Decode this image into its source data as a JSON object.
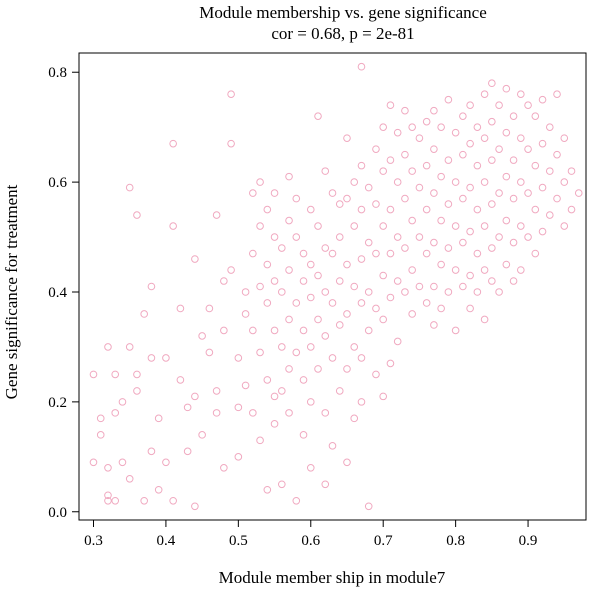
{
  "chart_data": {
    "type": "scatter",
    "title": "Module membership vs. gene significance",
    "subtitle": "cor = 0.68, p = 2e-81",
    "xlabel": "Module member ship in module7",
    "ylabel": "Gene significance for treatment",
    "xlim": [
      0.28,
      0.98
    ],
    "ylim": [
      -0.015,
      0.835
    ],
    "xticks": [
      0.3,
      0.4,
      0.5,
      0.6,
      0.7,
      0.8,
      0.9
    ],
    "xtick_labels": [
      "0.3",
      "0.4",
      "0.5",
      "0.6",
      "0.7",
      "0.8",
      "0.9"
    ],
    "yticks": [
      0.0,
      0.2,
      0.4,
      0.6,
      0.8
    ],
    "ytick_labels": [
      "0.0",
      "0.2",
      "0.4",
      "0.6",
      "0.8"
    ],
    "grid": false,
    "legend": "none",
    "marker": "open-circle",
    "point_color": "#f0a9c0",
    "series": [
      {
        "points": [
          [
            0.3,
            0.09
          ],
          [
            0.3,
            0.25
          ],
          [
            0.31,
            0.17
          ],
          [
            0.31,
            0.14
          ],
          [
            0.32,
            0.08
          ],
          [
            0.32,
            0.03
          ],
          [
            0.32,
            0.02
          ],
          [
            0.32,
            0.3
          ],
          [
            0.33,
            0.18
          ],
          [
            0.33,
            0.25
          ],
          [
            0.33,
            0.02
          ],
          [
            0.34,
            0.09
          ],
          [
            0.34,
            0.2
          ],
          [
            0.35,
            0.3
          ],
          [
            0.35,
            0.59
          ],
          [
            0.35,
            0.06
          ],
          [
            0.36,
            0.54
          ],
          [
            0.36,
            0.25
          ],
          [
            0.36,
            0.22
          ],
          [
            0.37,
            0.36
          ],
          [
            0.37,
            0.02
          ],
          [
            0.38,
            0.41
          ],
          [
            0.38,
            0.11
          ],
          [
            0.38,
            0.28
          ],
          [
            0.39,
            0.17
          ],
          [
            0.39,
            0.04
          ],
          [
            0.4,
            0.09
          ],
          [
            0.4,
            0.28
          ],
          [
            0.41,
            0.67
          ],
          [
            0.41,
            0.52
          ],
          [
            0.41,
            0.02
          ],
          [
            0.42,
            0.37
          ],
          [
            0.42,
            0.24
          ],
          [
            0.43,
            0.19
          ],
          [
            0.43,
            0.11
          ],
          [
            0.44,
            0.46
          ],
          [
            0.44,
            0.21
          ],
          [
            0.44,
            0.01
          ],
          [
            0.45,
            0.32
          ],
          [
            0.45,
            0.14
          ],
          [
            0.46,
            0.37
          ],
          [
            0.46,
            0.29
          ],
          [
            0.47,
            0.54
          ],
          [
            0.47,
            0.22
          ],
          [
            0.47,
            0.18
          ],
          [
            0.48,
            0.42
          ],
          [
            0.48,
            0.33
          ],
          [
            0.48,
            0.08
          ],
          [
            0.49,
            0.76
          ],
          [
            0.49,
            0.67
          ],
          [
            0.49,
            0.44
          ],
          [
            0.5,
            0.28
          ],
          [
            0.5,
            0.19
          ],
          [
            0.5,
            0.1
          ],
          [
            0.51,
            0.4
          ],
          [
            0.51,
            0.36
          ],
          [
            0.51,
            0.23
          ],
          [
            0.52,
            0.58
          ],
          [
            0.52,
            0.47
          ],
          [
            0.52,
            0.33
          ],
          [
            0.52,
            0.18
          ],
          [
            0.53,
            0.6
          ],
          [
            0.53,
            0.52
          ],
          [
            0.53,
            0.41
          ],
          [
            0.53,
            0.29
          ],
          [
            0.53,
            0.13
          ],
          [
            0.54,
            0.55
          ],
          [
            0.54,
            0.45
          ],
          [
            0.54,
            0.38
          ],
          [
            0.54,
            0.24
          ],
          [
            0.54,
            0.04
          ],
          [
            0.55,
            0.58
          ],
          [
            0.55,
            0.5
          ],
          [
            0.55,
            0.42
          ],
          [
            0.55,
            0.33
          ],
          [
            0.55,
            0.21
          ],
          [
            0.55,
            0.16
          ],
          [
            0.56,
            0.48
          ],
          [
            0.56,
            0.4
          ],
          [
            0.56,
            0.3
          ],
          [
            0.56,
            0.22
          ],
          [
            0.56,
            0.05
          ],
          [
            0.57,
            0.61
          ],
          [
            0.57,
            0.53
          ],
          [
            0.57,
            0.44
          ],
          [
            0.57,
            0.35
          ],
          [
            0.57,
            0.26
          ],
          [
            0.57,
            0.18
          ],
          [
            0.58,
            0.57
          ],
          [
            0.58,
            0.5
          ],
          [
            0.58,
            0.38
          ],
          [
            0.58,
            0.29
          ],
          [
            0.58,
            0.02
          ],
          [
            0.59,
            0.47
          ],
          [
            0.59,
            0.42
          ],
          [
            0.59,
            0.33
          ],
          [
            0.59,
            0.24
          ],
          [
            0.59,
            0.14
          ],
          [
            0.6,
            0.55
          ],
          [
            0.6,
            0.45
          ],
          [
            0.6,
            0.39
          ],
          [
            0.6,
            0.3
          ],
          [
            0.6,
            0.2
          ],
          [
            0.6,
            0.08
          ],
          [
            0.61,
            0.72
          ],
          [
            0.61,
            0.52
          ],
          [
            0.61,
            0.43
          ],
          [
            0.61,
            0.35
          ],
          [
            0.61,
            0.26
          ],
          [
            0.62,
            0.62
          ],
          [
            0.62,
            0.48
          ],
          [
            0.62,
            0.4
          ],
          [
            0.62,
            0.32
          ],
          [
            0.62,
            0.18
          ],
          [
            0.62,
            0.05
          ],
          [
            0.63,
            0.58
          ],
          [
            0.63,
            0.47
          ],
          [
            0.63,
            0.38
          ],
          [
            0.63,
            0.28
          ],
          [
            0.63,
            0.12
          ],
          [
            0.64,
            0.56
          ],
          [
            0.64,
            0.5
          ],
          [
            0.64,
            0.42
          ],
          [
            0.64,
            0.34
          ],
          [
            0.64,
            0.22
          ],
          [
            0.65,
            0.68
          ],
          [
            0.65,
            0.57
          ],
          [
            0.65,
            0.45
          ],
          [
            0.65,
            0.36
          ],
          [
            0.65,
            0.26
          ],
          [
            0.65,
            0.09
          ],
          [
            0.66,
            0.6
          ],
          [
            0.66,
            0.52
          ],
          [
            0.66,
            0.41
          ],
          [
            0.66,
            0.3
          ],
          [
            0.66,
            0.17
          ],
          [
            0.67,
            0.81
          ],
          [
            0.67,
            0.63
          ],
          [
            0.67,
            0.55
          ],
          [
            0.67,
            0.46
          ],
          [
            0.67,
            0.38
          ],
          [
            0.67,
            0.28
          ],
          [
            0.67,
            0.2
          ],
          [
            0.68,
            0.59
          ],
          [
            0.68,
            0.49
          ],
          [
            0.68,
            0.4
          ],
          [
            0.68,
            0.33
          ],
          [
            0.68,
            0.01
          ],
          [
            0.69,
            0.66
          ],
          [
            0.69,
            0.56
          ],
          [
            0.69,
            0.47
          ],
          [
            0.69,
            0.37
          ],
          [
            0.69,
            0.25
          ],
          [
            0.7,
            0.7
          ],
          [
            0.7,
            0.62
          ],
          [
            0.7,
            0.52
          ],
          [
            0.7,
            0.43
          ],
          [
            0.7,
            0.35
          ],
          [
            0.7,
            0.21
          ],
          [
            0.71,
            0.74
          ],
          [
            0.71,
            0.64
          ],
          [
            0.71,
            0.55
          ],
          [
            0.71,
            0.47
          ],
          [
            0.71,
            0.39
          ],
          [
            0.71,
            0.27
          ],
          [
            0.72,
            0.69
          ],
          [
            0.72,
            0.6
          ],
          [
            0.72,
            0.5
          ],
          [
            0.72,
            0.42
          ],
          [
            0.72,
            0.31
          ],
          [
            0.73,
            0.73
          ],
          [
            0.73,
            0.65
          ],
          [
            0.73,
            0.57
          ],
          [
            0.73,
            0.48
          ],
          [
            0.73,
            0.4
          ],
          [
            0.74,
            0.7
          ],
          [
            0.74,
            0.62
          ],
          [
            0.74,
            0.53
          ],
          [
            0.74,
            0.44
          ],
          [
            0.74,
            0.36
          ],
          [
            0.75,
            0.68
          ],
          [
            0.75,
            0.59
          ],
          [
            0.75,
            0.5
          ],
          [
            0.75,
            0.41
          ],
          [
            0.76,
            0.71
          ],
          [
            0.76,
            0.63
          ],
          [
            0.76,
            0.55
          ],
          [
            0.76,
            0.47
          ],
          [
            0.76,
            0.38
          ],
          [
            0.77,
            0.73
          ],
          [
            0.77,
            0.66
          ],
          [
            0.77,
            0.58
          ],
          [
            0.77,
            0.49
          ],
          [
            0.77,
            0.41
          ],
          [
            0.77,
            0.34
          ],
          [
            0.78,
            0.7
          ],
          [
            0.78,
            0.61
          ],
          [
            0.78,
            0.53
          ],
          [
            0.78,
            0.45
          ],
          [
            0.78,
            0.37
          ],
          [
            0.79,
            0.75
          ],
          [
            0.79,
            0.64
          ],
          [
            0.79,
            0.56
          ],
          [
            0.79,
            0.48
          ],
          [
            0.79,
            0.4
          ],
          [
            0.8,
            0.69
          ],
          [
            0.8,
            0.6
          ],
          [
            0.8,
            0.52
          ],
          [
            0.8,
            0.44
          ],
          [
            0.8,
            0.33
          ],
          [
            0.81,
            0.72
          ],
          [
            0.81,
            0.65
          ],
          [
            0.81,
            0.57
          ],
          [
            0.81,
            0.49
          ],
          [
            0.81,
            0.41
          ],
          [
            0.82,
            0.74
          ],
          [
            0.82,
            0.67
          ],
          [
            0.82,
            0.59
          ],
          [
            0.82,
            0.51
          ],
          [
            0.82,
            0.43
          ],
          [
            0.82,
            0.37
          ],
          [
            0.83,
            0.7
          ],
          [
            0.83,
            0.63
          ],
          [
            0.83,
            0.55
          ],
          [
            0.83,
            0.47
          ],
          [
            0.83,
            0.4
          ],
          [
            0.84,
            0.76
          ],
          [
            0.84,
            0.68
          ],
          [
            0.84,
            0.6
          ],
          [
            0.84,
            0.52
          ],
          [
            0.84,
            0.44
          ],
          [
            0.84,
            0.35
          ],
          [
            0.85,
            0.78
          ],
          [
            0.85,
            0.71
          ],
          [
            0.85,
            0.64
          ],
          [
            0.85,
            0.56
          ],
          [
            0.85,
            0.48
          ],
          [
            0.85,
            0.42
          ],
          [
            0.86,
            0.74
          ],
          [
            0.86,
            0.66
          ],
          [
            0.86,
            0.58
          ],
          [
            0.86,
            0.5
          ],
          [
            0.86,
            0.4
          ],
          [
            0.87,
            0.77
          ],
          [
            0.87,
            0.69
          ],
          [
            0.87,
            0.61
          ],
          [
            0.87,
            0.53
          ],
          [
            0.87,
            0.45
          ],
          [
            0.88,
            0.72
          ],
          [
            0.88,
            0.64
          ],
          [
            0.88,
            0.57
          ],
          [
            0.88,
            0.49
          ],
          [
            0.88,
            0.42
          ],
          [
            0.89,
            0.76
          ],
          [
            0.89,
            0.68
          ],
          [
            0.89,
            0.6
          ],
          [
            0.89,
            0.52
          ],
          [
            0.89,
            0.44
          ],
          [
            0.9,
            0.74
          ],
          [
            0.9,
            0.66
          ],
          [
            0.9,
            0.58
          ],
          [
            0.9,
            0.5
          ],
          [
            0.91,
            0.72
          ],
          [
            0.91,
            0.63
          ],
          [
            0.91,
            0.55
          ],
          [
            0.91,
            0.47
          ],
          [
            0.92,
            0.75
          ],
          [
            0.92,
            0.67
          ],
          [
            0.92,
            0.59
          ],
          [
            0.92,
            0.51
          ],
          [
            0.93,
            0.7
          ],
          [
            0.93,
            0.62
          ],
          [
            0.93,
            0.54
          ],
          [
            0.94,
            0.76
          ],
          [
            0.94,
            0.65
          ],
          [
            0.94,
            0.57
          ],
          [
            0.95,
            0.68
          ],
          [
            0.95,
            0.6
          ],
          [
            0.95,
            0.52
          ],
          [
            0.96,
            0.62
          ],
          [
            0.96,
            0.55
          ],
          [
            0.97,
            0.58
          ]
        ]
      }
    ]
  }
}
